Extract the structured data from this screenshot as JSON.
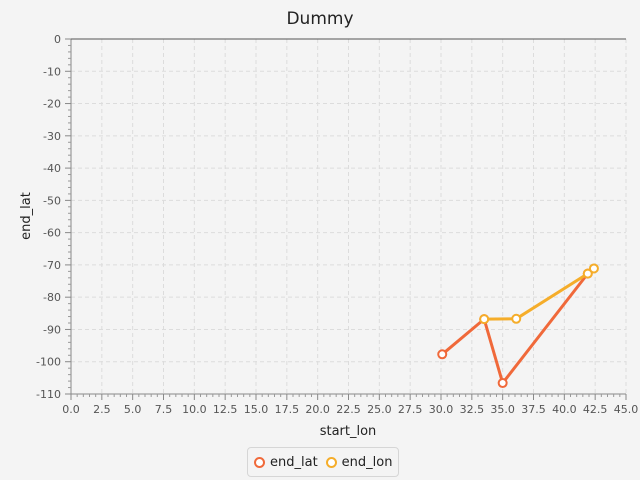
{
  "chart_data": {
    "type": "line",
    "title": "Dummy",
    "xlabel": "start_lon",
    "ylabel": "end_lat",
    "xlim": [
      0,
      45
    ],
    "ylim": [
      -110,
      0
    ],
    "x_ticks": [
      "0.0",
      "2.5",
      "5.0",
      "7.5",
      "10.0",
      "12.5",
      "15.0",
      "17.5",
      "20.0",
      "22.5",
      "25.0",
      "27.5",
      "30.0",
      "32.5",
      "35.0",
      "37.5",
      "40.0",
      "42.5",
      "45.0"
    ],
    "y_ticks": [
      "0",
      "-10",
      "-20",
      "-30",
      "-40",
      "-50",
      "-60",
      "-70",
      "-80",
      "-90",
      "-100",
      "-110"
    ],
    "grid": true,
    "legend_position": "bottom",
    "series": [
      {
        "name": "end_lat",
        "color": "#f0693a",
        "points": [
          [
            30.1,
            -97.7
          ],
          [
            33.5,
            -86.8
          ],
          [
            35.0,
            -106.6
          ],
          [
            41.9,
            -72.7
          ]
        ]
      },
      {
        "name": "end_lon",
        "color": "#f5ad2a",
        "points": [
          [
            33.5,
            -86.8
          ],
          [
            36.1,
            -86.7
          ],
          [
            41.9,
            -72.7
          ],
          [
            42.4,
            -71.1
          ]
        ]
      }
    ]
  }
}
